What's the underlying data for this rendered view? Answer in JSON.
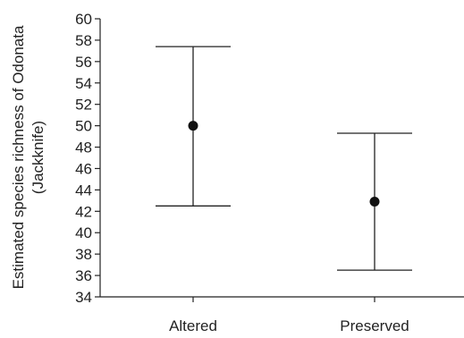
{
  "chart_data": {
    "type": "scatter",
    "title": "",
    "xlabel": "",
    "ylabel_lines": [
      "Estimated species richness of Odonata",
      "(Jackknife)"
    ],
    "categories": [
      "Altered",
      "Preserved"
    ],
    "series": [
      {
        "mean": [
          50.0,
          42.9
        ],
        "lower": [
          42.5,
          36.5
        ],
        "upper": [
          57.4,
          49.3
        ]
      }
    ],
    "ylim": [
      34,
      60
    ],
    "yticks": [
      34,
      36,
      38,
      40,
      42,
      44,
      46,
      48,
      50,
      52,
      54,
      56,
      58,
      60
    ],
    "grid": false,
    "colors": {
      "axis": "#222222",
      "marker": "#111111",
      "error_bar": "#222222"
    }
  }
}
